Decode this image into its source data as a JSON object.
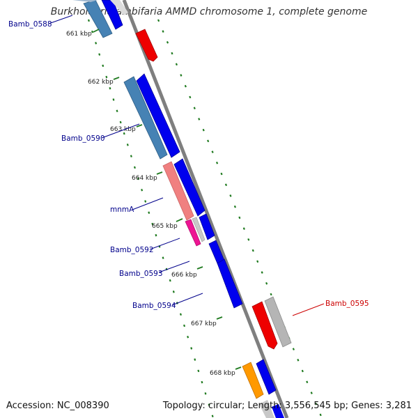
{
  "title": "Burkholderia ambifaria AMMD chromosome 1, complete genome",
  "footer": {
    "accession": "Accession: NC_008390",
    "summary": "Topology: circular; Length: 3,556,545 bp; Genes: 3,281"
  },
  "colors": {
    "backbone": "#7f7f7f",
    "grid_dash": "#1f7a1f",
    "gene_label": "#00008b",
    "gene_label_highlight": "#cc0000",
    "forward_gene": "#0000ee",
    "reverse_gene_steel": "#4682b4",
    "reverse_gene_red": "#ee0000",
    "pink_gene": "#f08080",
    "magenta_gene": "#ee1493",
    "grey_gene": "#b5b5b5",
    "orange_gene": "#ff9900"
  },
  "ticks": [
    "661 kbp",
    "662 kbp",
    "663 kbp",
    "664 kbp",
    "665 kbp",
    "666 kbp",
    "667 kbp",
    "668 kbp"
  ],
  "gene_labels": [
    "Bamb_0588",
    "Bamb_0590",
    "mnmA",
    "Bamb_0592",
    "Bamb_0593",
    "Bamb_0594",
    "Bamb_0595"
  ]
}
